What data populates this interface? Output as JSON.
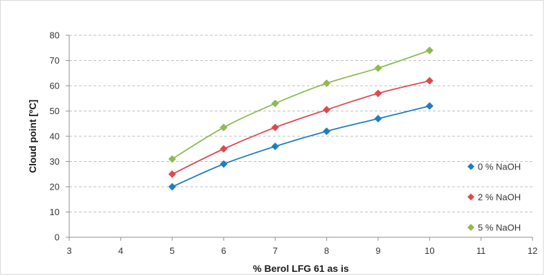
{
  "chart_data": {
    "type": "scatter",
    "title": "",
    "xlabel": "% Berol LFG 61 as is",
    "ylabel": "Cloud point [ºC]",
    "xlim": [
      3,
      12
    ],
    "ylim": [
      0,
      80
    ],
    "xticks": [
      3,
      4,
      5,
      6,
      7,
      8,
      9,
      10,
      11,
      12
    ],
    "yticks": [
      0,
      10,
      20,
      30,
      40,
      50,
      60,
      70,
      80
    ],
    "grid": "horizontal dashed",
    "legend_position": "right",
    "x": [
      5,
      6,
      7,
      8,
      9,
      10
    ],
    "series": [
      {
        "name": "0 % NaOH",
        "color": "#1f7ec1",
        "marker": "diamond",
        "values": [
          20,
          29,
          36,
          42,
          47,
          52
        ]
      },
      {
        "name": "2 % NaOH",
        "color": "#e0484f",
        "marker": "diamond",
        "values": [
          25,
          35,
          43.5,
          50.5,
          57,
          62
        ]
      },
      {
        "name": "5 % NaOH",
        "color": "#8dbb4e",
        "marker": "diamond",
        "values": [
          31,
          43.5,
          53,
          61,
          67,
          74
        ]
      }
    ]
  }
}
